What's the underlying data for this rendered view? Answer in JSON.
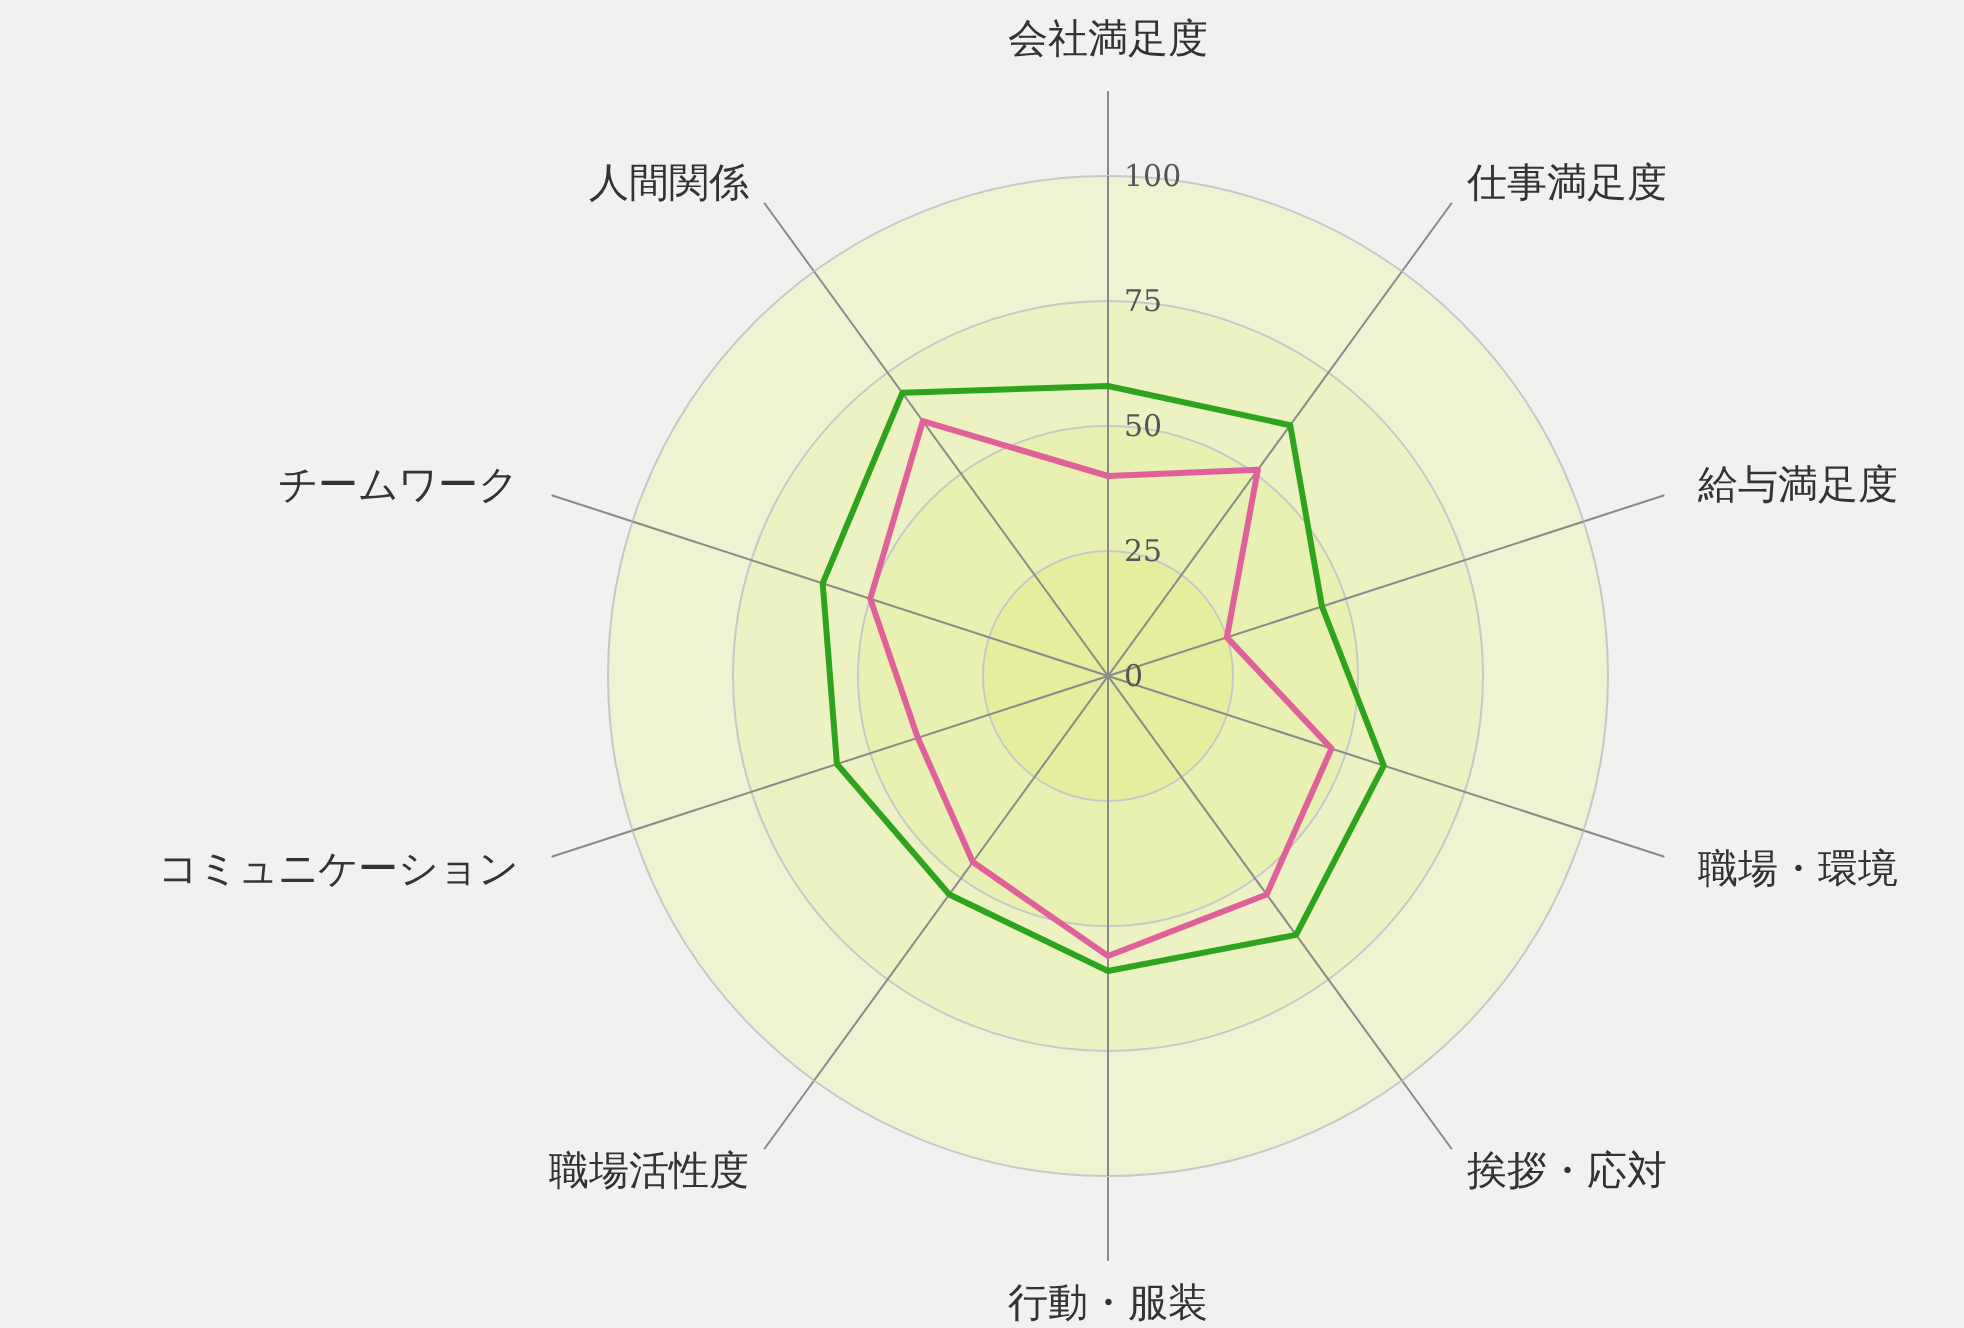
{
  "chart_data": {
    "type": "radar",
    "categories": [
      "会社満足度",
      "仕事満足度",
      "給与満足度",
      "職場・環境",
      "挨拶・応対",
      "行動・服装",
      "職場活性度",
      "コミュニケーション",
      "チームワーク",
      "人間関係"
    ],
    "series": [
      {
        "color": "#2ea41e",
        "values": [
          58,
          62,
          45,
          58,
          64,
          59,
          54,
          57,
          60,
          70
        ]
      },
      {
        "color": "#e0609a",
        "values": [
          40,
          51,
          25,
          47,
          54,
          56,
          46,
          40,
          50,
          63
        ]
      }
    ],
    "ylim": [
      0,
      100
    ],
    "yticks": [
      0,
      25,
      50,
      75,
      100
    ],
    "grid": true
  }
}
